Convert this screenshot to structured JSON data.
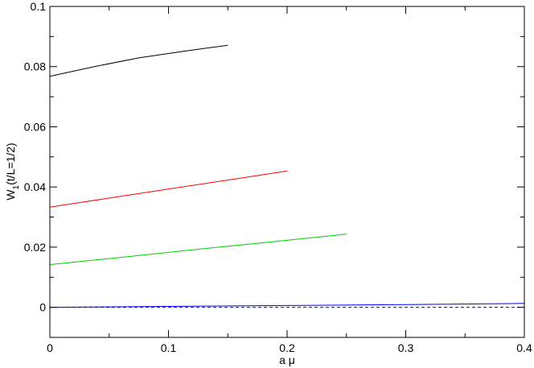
{
  "chart_data": {
    "type": "line",
    "xlabel": "a μ",
    "ylabel_main": "W",
    "ylabel_sub": "1",
    "ylabel_rest": "(t/L=1/2)",
    "xlim": [
      0,
      0.4
    ],
    "ylim": [
      -0.01,
      0.1
    ],
    "x_ticks": [
      0,
      0.1,
      0.2,
      0.3,
      0.4
    ],
    "x_tick_labels": [
      "0",
      "0.1",
      "0.2",
      "0.3",
      "0.4"
    ],
    "y_ticks": [
      0,
      0.02,
      0.04,
      0.06,
      0.08,
      0.1
    ],
    "y_tick_labels": [
      "0",
      "0.02",
      "0.04",
      "0.06",
      "0.08",
      "0.1"
    ],
    "grid": false,
    "legend": "none",
    "series": [
      {
        "color": "#000000",
        "style": "solid",
        "x": [
          0,
          0.0375,
          0.075,
          0.1125,
          0.15
        ],
        "y": [
          0.0768,
          0.08,
          0.0829,
          0.0851,
          0.0871
        ]
      },
      {
        "color": "#ff0000",
        "style": "solid",
        "x": [
          0,
          0.05,
          0.1,
          0.15,
          0.2
        ],
        "y": [
          0.0333,
          0.0363,
          0.0393,
          0.0423,
          0.0453
        ]
      },
      {
        "color": "#00cc00",
        "style": "solid",
        "x": [
          0,
          0.0625,
          0.125,
          0.1875,
          0.25
        ],
        "y": [
          0.0142,
          0.0167,
          0.0193,
          0.0218,
          0.0243
        ]
      },
      {
        "color": "#0000ff",
        "style": "solid",
        "x": [
          0,
          0.1,
          0.2,
          0.3,
          0.4
        ],
        "y": [
          0.0,
          0.0003,
          0.0006,
          0.0009,
          0.0013
        ]
      },
      {
        "color": "#0000ff",
        "style": "dashed",
        "x": [
          0,
          0.4
        ],
        "y": [
          0.0,
          0.0
        ]
      }
    ]
  }
}
